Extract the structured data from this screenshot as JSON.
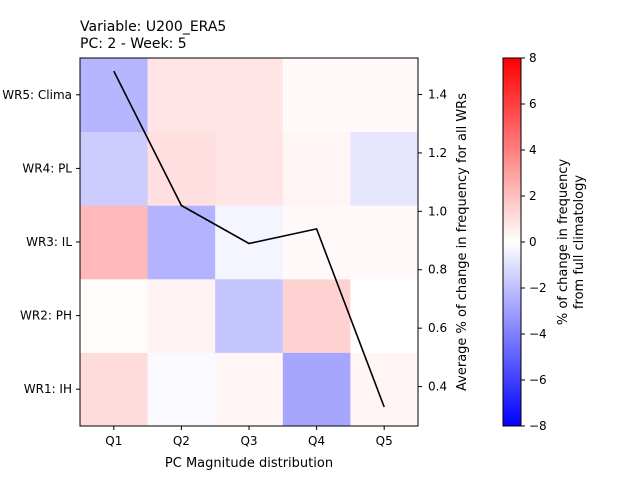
{
  "chart_data": {
    "type": "heatmap",
    "title_lines": [
      "Variable: U200_ERA5",
      "PC: 2 - Week: 5"
    ],
    "xlabel": "PC Magnitude distribution",
    "ylabel_right": "Average % of change in frequency for all WRs",
    "colorbar_label_lines": [
      "% of change in frequency",
      "from full climatology"
    ],
    "x_categories": [
      "Q1",
      "Q2",
      "Q3",
      "Q4",
      "Q5"
    ],
    "y_categories": [
      "WR1: IH",
      "WR2: PH",
      "WR3: IL",
      "WR4: PL",
      "WR5: Clima"
    ],
    "cells": [
      [
        1.1,
        -0.2,
        0.3,
        -2.8,
        0.3
      ],
      [
        0.1,
        0.4,
        -1.8,
        1.4,
        0.0
      ],
      [
        2.2,
        -2.4,
        -0.3,
        0.2,
        0.2
      ],
      [
        -1.6,
        1.0,
        0.8,
        0.3,
        -0.8
      ],
      [
        -2.3,
        0.8,
        0.8,
        0.2,
        0.2
      ]
    ],
    "color_range": [
      -8,
      8
    ],
    "colormap": [
      "#0000ff",
      "#ffffff",
      "#ff0000"
    ],
    "colorbar_ticks": [
      -8,
      -6,
      -4,
      -2,
      0,
      2,
      4,
      6,
      8
    ],
    "line_series": {
      "x": [
        "Q1",
        "Q2",
        "Q3",
        "Q4",
        "Q5"
      ],
      "values": [
        1.48,
        1.02,
        0.89,
        0.94,
        0.33
      ],
      "color": "#000000"
    },
    "right_axis_ylim": [
      0.265,
      1.525
    ],
    "right_axis_ticks": [
      0.4,
      0.6,
      0.8,
      1.0,
      1.2,
      1.4
    ]
  }
}
